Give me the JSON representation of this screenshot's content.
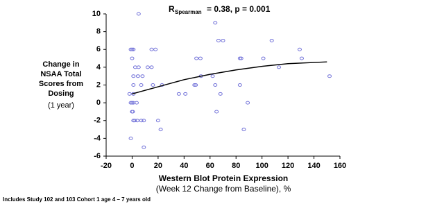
{
  "chart_data": {
    "type": "scatter",
    "title": {
      "main": "R",
      "sub": "Spearman",
      "rest": "= 0.38, p = 0.001"
    },
    "y_label": [
      "Change in",
      "NSAA Total",
      "Scores from",
      "Dosing",
      "(1 year)"
    ],
    "x_label": [
      "Western Blot Protein Expression",
      "(Week 12 Change from Baseline), %"
    ],
    "footnote": "Includes Study 102 and 103 Cohort 1 age 4 – 7 years old",
    "xlim": [
      -20,
      160
    ],
    "xticks": [
      -20,
      0,
      20,
      40,
      60,
      80,
      100,
      120,
      140,
      160
    ],
    "ylim": [
      -6,
      10
    ],
    "yticks": [
      -6,
      -4,
      -2,
      0,
      2,
      4,
      6,
      8,
      10
    ],
    "grid": false,
    "series": [
      {
        "color": "#6f6fd8",
        "x": [
          5,
          64,
          -1,
          0,
          1,
          15,
          18,
          66.5,
          70,
          107.5,
          129,
          130.6,
          101,
          83,
          84,
          49.5,
          52.6,
          0,
          2.4,
          5,
          12,
          15,
          113,
          1,
          4.5,
          8,
          53,
          62,
          152,
          1,
          7,
          16,
          23,
          48,
          49,
          64,
          83,
          -2,
          1,
          36,
          41,
          68,
          -1,
          0,
          1,
          3.5,
          89,
          0,
          0.5,
          65,
          1,
          2,
          4,
          7,
          9,
          20,
          22,
          86,
          -1,
          9
        ],
        "y": [
          10,
          9,
          6,
          6,
          6,
          6,
          6,
          7,
          7,
          7,
          6,
          5,
          5,
          5,
          5,
          5,
          5,
          5,
          4,
          4,
          4,
          4,
          4,
          3,
          3,
          3,
          3,
          3,
          3,
          2,
          2,
          2,
          2,
          2,
          2,
          2,
          2,
          1,
          1,
          1,
          1,
          1,
          0,
          0,
          0,
          0,
          0,
          -1,
          -1,
          -1,
          -2,
          -2,
          -2,
          -2,
          -2,
          -2,
          -3,
          -3,
          -4,
          -5
        ]
      }
    ],
    "trend": {
      "color": "#000000",
      "x": [
        0,
        20,
        40,
        60,
        80,
        100,
        120,
        150
      ],
      "y": [
        1,
        1.8,
        2.6,
        3.2,
        3.7,
        4.1,
        4.4,
        4.6
      ]
    }
  }
}
